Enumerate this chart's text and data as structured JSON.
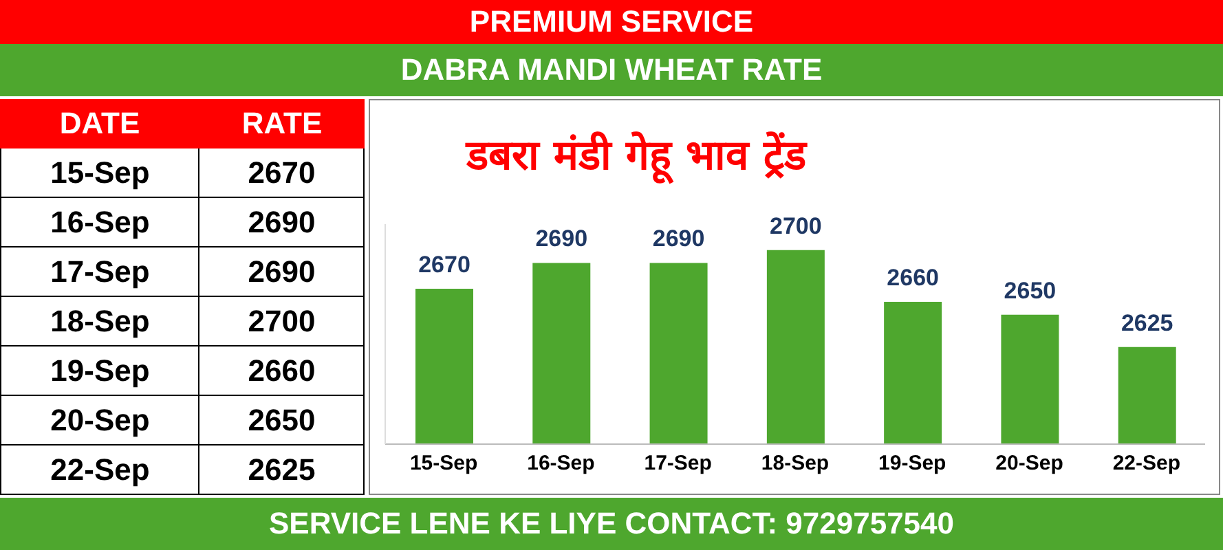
{
  "chart_data": [
    {
      "type": "other",
      "annotations": [
        "DATE",
        "RATE",
        "15-Sep",
        "2670",
        "16-Sep",
        "2690",
        "17-Sep",
        "2690",
        "18-Sep",
        "2700",
        "19-Sep",
        "2660",
        "20-Sep",
        "2650",
        "22-Sep",
        "2625"
      ]
    },
    {
      "type": "bar",
      "title": "डबरा मंडी गेहू भाव  ट्रेंड",
      "subtitle": "DABRA MANDI WHEAT RATE",
      "annotations": [
        "PREMIUM SERVICE",
        "SERVICE LENE KE LIYE CONTACT: 9729757540"
      ],
      "categories": [
        "15-Sep",
        "16-Sep",
        "17-Sep",
        "18-Sep",
        "19-Sep",
        "20-Sep",
        "22-Sep"
      ],
      "values": [
        2670,
        2690,
        2690,
        2700,
        2660,
        2650,
        2625
      ],
      "color": "#4ea72e",
      "ylim": [
        2550,
        2720
      ],
      "tick_labels": "x",
      "data_labels": true,
      "grid": false,
      "legend": false
    }
  ]
}
